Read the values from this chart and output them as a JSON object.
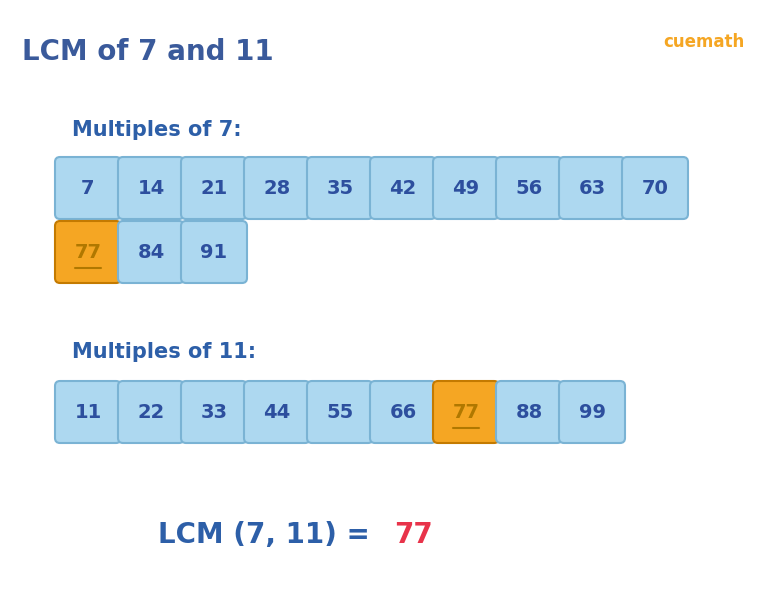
{
  "title": "LCM of 7 and 11",
  "title_color": "#3a5a9b",
  "title_fontsize": 20,
  "background_color": "#ffffff",
  "multiples_7_label": "Multiples of 7:",
  "multiples_11_label": "Multiples of 11:",
  "label_color": "#2d5fa8",
  "label_fontsize": 15,
  "multiples_7_row1": [
    7,
    14,
    21,
    28,
    35,
    42,
    49,
    56,
    63,
    70
  ],
  "multiples_7_row2": [
    77,
    84,
    91
  ],
  "multiples_11_row1": [
    11,
    22,
    33,
    44,
    55,
    66,
    77,
    88,
    99
  ],
  "highlight_value": 77,
  "box_normal_color": "#add8f0",
  "box_highlight_color": "#f5a623",
  "box_text_color": "#2d4f9e",
  "box_highlight_text_color": "#b07800",
  "box_border_color": "#7ab3d4",
  "box_highlight_border_color": "#c47a00",
  "text_fontsize": 14,
  "lcm_label": "LCM (7, 11) = ",
  "lcm_value": "77",
  "lcm_label_color": "#2d5fa8",
  "lcm_value_color": "#e8334a",
  "lcm_fontsize": 20,
  "cuemath_text": "cuemath",
  "cuemath_color": "#f5a623"
}
